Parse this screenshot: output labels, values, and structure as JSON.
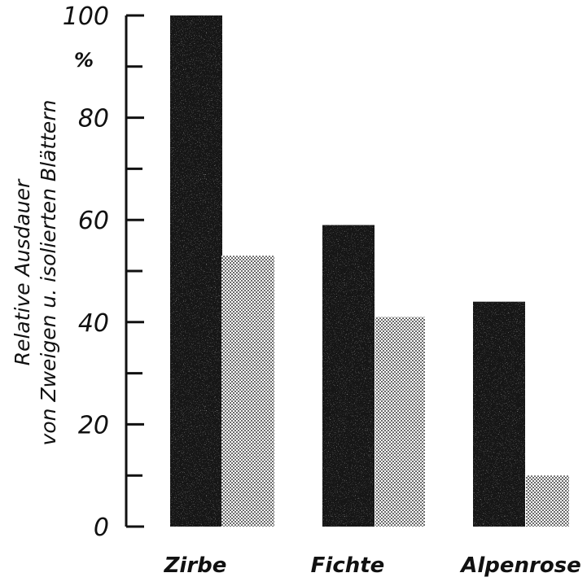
{
  "chart_data": {
    "type": "bar",
    "ylabel": [
      "Relative  Ausdauer",
      "von Zweigen u. isolierten Blättern"
    ],
    "unit": "%",
    "ylim": [
      0,
      100
    ],
    "yticks": [
      0,
      20,
      40,
      60,
      80,
      100
    ],
    "categories": [
      "Zirbe",
      "Fichte",
      "Alpenrose"
    ],
    "series": [
      {
        "values": [
          100,
          59,
          44
        ],
        "fill": "#121212"
      },
      {
        "values": [
          53,
          41,
          10
        ],
        "fill": "#c9c9c9"
      }
    ],
    "grid": false,
    "legend": "none"
  }
}
